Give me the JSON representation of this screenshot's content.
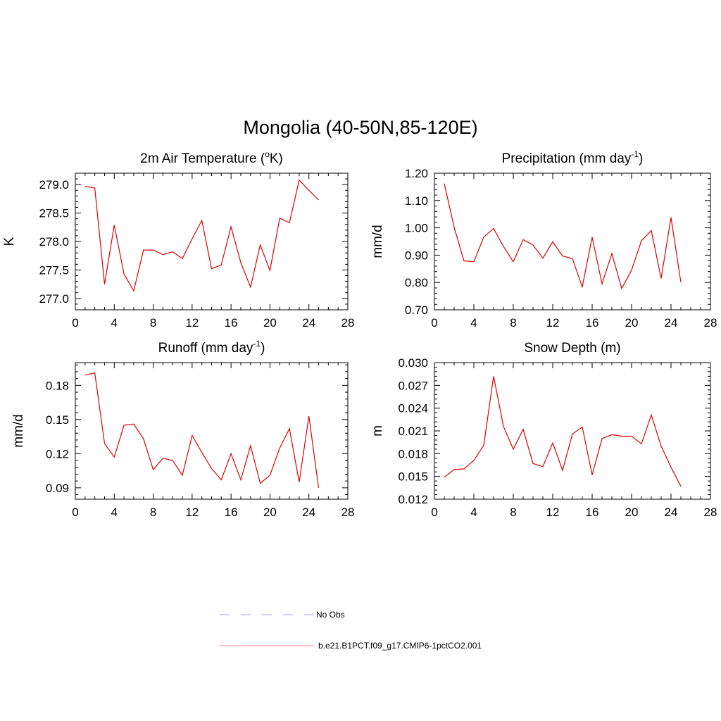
{
  "figure": {
    "title": "Mongolia (40-50N,85-120E)"
  },
  "chart_data": [
    {
      "id": "temp",
      "type": "line",
      "title": "2m Air Temperature (",
      "title_sup": "o",
      "title_suffix": "K)",
      "xlabel": "",
      "ylabel": "K",
      "xlim": [
        0,
        28
      ],
      "ylim": [
        276.8,
        279.2
      ],
      "xticks": [
        0,
        4,
        8,
        12,
        16,
        20,
        24,
        28
      ],
      "xtick_labels": [
        "0",
        "4",
        "8",
        "12",
        "16",
        "20",
        "24",
        "28"
      ],
      "yticks": [
        277.0,
        277.5,
        278.0,
        278.5,
        279.0
      ],
      "ytick_labels": [
        "277.0",
        "277.5",
        "278.0",
        "278.5",
        "279.0"
      ],
      "series": [
        {
          "name": "b.e21.B1PCT.f09_g17.CMIP6-1pctCO2.001",
          "color": "#e00000",
          "x": [
            1,
            2,
            3,
            4,
            5,
            6,
            7,
            8,
            9,
            10,
            11,
            12,
            13,
            14,
            15,
            16,
            17,
            18,
            19,
            20,
            21,
            22,
            23,
            24,
            25
          ],
          "values": [
            278.97,
            278.94,
            277.25,
            278.29,
            277.43,
            277.13,
            277.85,
            277.85,
            277.77,
            277.82,
            277.7,
            278.05,
            278.37,
            277.52,
            277.59,
            278.26,
            277.63,
            277.2,
            277.94,
            277.49,
            278.41,
            278.33,
            279.08,
            278.9,
            278.73
          ]
        }
      ]
    },
    {
      "id": "precip",
      "type": "line",
      "title": "Precipitation (mm day",
      "title_sup": "-1",
      "title_suffix": ")",
      "xlabel": "",
      "ylabel": "mm/d",
      "xlim": [
        0,
        28
      ],
      "ylim": [
        0.7,
        1.2
      ],
      "xticks": [
        0,
        4,
        8,
        12,
        16,
        20,
        24,
        28
      ],
      "xtick_labels": [
        "0",
        "4",
        "8",
        "12",
        "16",
        "20",
        "24",
        "28"
      ],
      "yticks": [
        0.7,
        0.8,
        0.9,
        1.0,
        1.1,
        1.2
      ],
      "ytick_labels": [
        "0.70",
        "0.80",
        "0.90",
        "1.00",
        "1.10",
        "1.20"
      ],
      "series": [
        {
          "name": "b.e21.B1PCT.f09_g17.CMIP6-1pctCO2.001",
          "color": "#e00000",
          "x": [
            1,
            2,
            3,
            4,
            5,
            6,
            7,
            8,
            9,
            10,
            11,
            12,
            13,
            14,
            15,
            16,
            17,
            18,
            19,
            20,
            21,
            22,
            23,
            24,
            25
          ],
          "values": [
            1.162,
            1.002,
            0.879,
            0.876,
            0.966,
            0.998,
            0.932,
            0.876,
            0.957,
            0.937,
            0.889,
            0.949,
            0.897,
            0.887,
            0.784,
            0.966,
            0.795,
            0.906,
            0.778,
            0.845,
            0.953,
            0.99,
            0.815,
            1.038,
            0.801
          ]
        }
      ]
    },
    {
      "id": "runoff",
      "type": "line",
      "title": "Runoff (mm day",
      "title_sup": "-1",
      "title_suffix": ")",
      "xlabel": "",
      "ylabel": "mm/d",
      "xlim": [
        0,
        28
      ],
      "ylim": [
        0.08,
        0.2
      ],
      "xticks": [
        0,
        4,
        8,
        12,
        16,
        20,
        24,
        28
      ],
      "xtick_labels": [
        "0",
        "4",
        "8",
        "12",
        "16",
        "20",
        "24",
        "28"
      ],
      "yticks": [
        0.09,
        0.12,
        0.15,
        0.18
      ],
      "ytick_labels": [
        "0.09",
        "0.12",
        "0.15",
        "0.18"
      ],
      "series": [
        {
          "name": "b.e21.B1PCT.f09_g17.CMIP6-1pctCO2.001",
          "color": "#e00000",
          "x": [
            1,
            2,
            3,
            4,
            5,
            6,
            7,
            8,
            9,
            10,
            11,
            12,
            13,
            14,
            15,
            16,
            17,
            18,
            19,
            20,
            21,
            22,
            23,
            24,
            25
          ],
          "values": [
            0.189,
            0.191,
            0.129,
            0.117,
            0.145,
            0.146,
            0.133,
            0.106,
            0.116,
            0.114,
            0.101,
            0.136,
            0.121,
            0.107,
            0.097,
            0.12,
            0.097,
            0.127,
            0.094,
            0.101,
            0.125,
            0.142,
            0.095,
            0.153,
            0.09
          ]
        }
      ]
    },
    {
      "id": "snow",
      "type": "line",
      "title": "Snow Depth (m)",
      "title_sup": "",
      "title_suffix": "",
      "xlabel": "",
      "ylabel": "m",
      "xlim": [
        0,
        28
      ],
      "ylim": [
        0.012,
        0.03
      ],
      "xticks": [
        0,
        4,
        8,
        12,
        16,
        20,
        24,
        28
      ],
      "xtick_labels": [
        "0",
        "4",
        "8",
        "12",
        "16",
        "20",
        "24",
        "28"
      ],
      "yticks": [
        0.012,
        0.015,
        0.018,
        0.021,
        0.024,
        0.027,
        0.03
      ],
      "ytick_labels": [
        "0.012",
        "0.015",
        "0.018",
        "0.021",
        "0.024",
        "0.027",
        "0.030"
      ],
      "series": [
        {
          "name": "b.e21.B1PCT.f09_g17.CMIP6-1pctCO2.001",
          "color": "#e00000",
          "x": [
            1,
            2,
            3,
            4,
            5,
            6,
            7,
            8,
            9,
            10,
            11,
            12,
            13,
            14,
            15,
            16,
            17,
            18,
            19,
            20,
            21,
            22,
            23,
            24,
            25
          ],
          "values": [
            0.0149,
            0.0159,
            0.016,
            0.0171,
            0.0191,
            0.0282,
            0.0216,
            0.0186,
            0.0212,
            0.0167,
            0.0163,
            0.0194,
            0.0158,
            0.0206,
            0.0215,
            0.0152,
            0.02,
            0.0205,
            0.0203,
            0.0203,
            0.0193,
            0.0231,
            0.019,
            0.0162,
            0.0137
          ]
        }
      ]
    }
  ],
  "legend": {
    "entries": [
      {
        "label": "No Obs",
        "color": "#a0a0ff",
        "style": "dashed"
      },
      {
        "label": "b.e21.B1PCT.f09_g17.CMIP6-1pctCO2.001",
        "color": "#ff8080",
        "style": "solid"
      }
    ]
  }
}
